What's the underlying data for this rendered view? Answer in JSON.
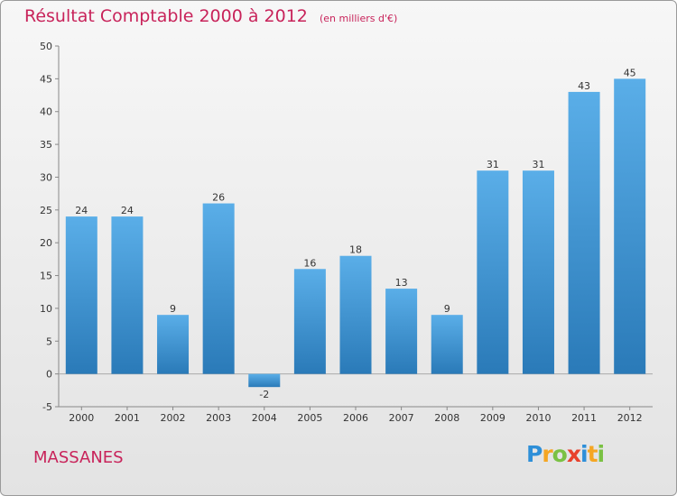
{
  "header": {
    "title": "Résultat Comptable 2000 à 2012",
    "subtitle": "(en milliers d'€)"
  },
  "footer": {
    "commune": "MASSANES",
    "logo_letters": [
      {
        "char": "P",
        "color": "#2e8fd8"
      },
      {
        "char": "r",
        "color": "#f5a623"
      },
      {
        "char": "o",
        "color": "#7ac143"
      },
      {
        "char": "x",
        "color": "#e8412c"
      },
      {
        "char": "i",
        "color": "#2e8fd8"
      },
      {
        "char": "t",
        "color": "#f5a623"
      },
      {
        "char": "i",
        "color": "#7ac143"
      }
    ]
  },
  "chart_data": {
    "type": "bar",
    "title": "Résultat Comptable 2000 à 2012",
    "subtitle": "(en milliers d'€)",
    "categories": [
      "2000",
      "2001",
      "2002",
      "2003",
      "2004",
      "2005",
      "2006",
      "2007",
      "2008",
      "2009",
      "2010",
      "2011",
      "2012"
    ],
    "values": [
      24,
      24,
      9,
      26,
      -2,
      16,
      18,
      13,
      9,
      31,
      31,
      43,
      45
    ],
    "ylim": [
      -5,
      50
    ],
    "yticks": [
      -5,
      0,
      5,
      10,
      15,
      20,
      25,
      30,
      35,
      40,
      45,
      50
    ],
    "grid": false,
    "data_labels": true,
    "bar_color_top": "#5aaee8",
    "bar_color_bottom": "#2a7ab8"
  }
}
